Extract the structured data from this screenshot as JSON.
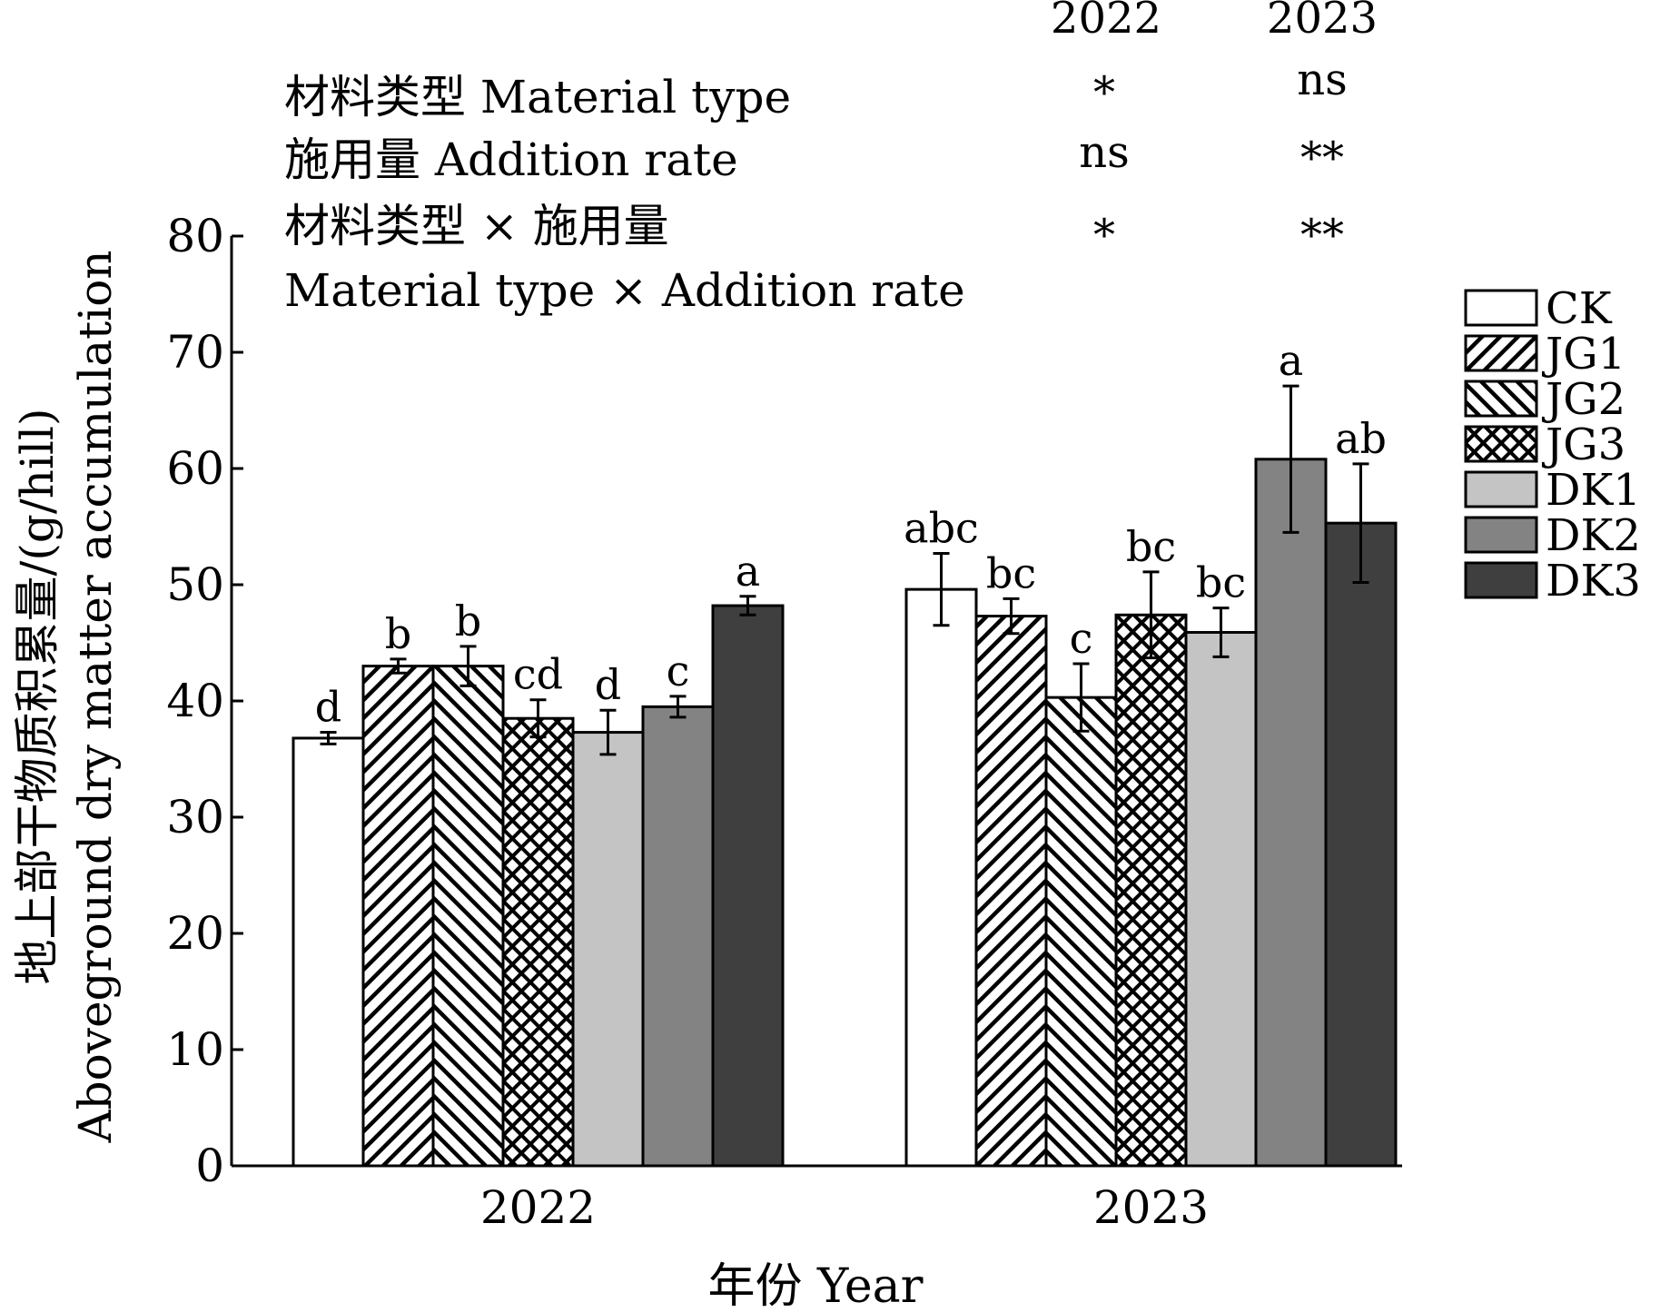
{
  "chart_data": {
    "type": "bar",
    "title": "",
    "xlabel": "年份 Year",
    "ylabel_cn": "地上部干物质积累量/(g/hill)",
    "ylabel_en": "Aboveground dry matter accumulation",
    "ylim": [
      0,
      80
    ],
    "yticks": [
      "0",
      "10",
      "20",
      "30",
      "40",
      "50",
      "60",
      "70",
      "80"
    ],
    "categories": [
      "2022",
      "2023"
    ],
    "series": [
      {
        "name": "CK",
        "values": [
          36.8,
          49.6
        ],
        "errors": [
          0.5,
          3.1
        ],
        "letters": [
          "d",
          "abc"
        ],
        "fill": "#ffffff",
        "pattern": "none"
      },
      {
        "name": "JG1",
        "values": [
          43.0,
          47.3
        ],
        "errors": [
          0.6,
          1.5
        ],
        "letters": [
          "b",
          "bc"
        ],
        "fill": "#ffffff",
        "pattern": "forward-diagonal"
      },
      {
        "name": "JG2",
        "values": [
          43.0,
          40.3
        ],
        "errors": [
          1.7,
          2.9
        ],
        "letters": [
          "b",
          "c"
        ],
        "fill": "#ffffff",
        "pattern": "backward-diagonal"
      },
      {
        "name": "JG3",
        "values": [
          38.5,
          47.4
        ],
        "errors": [
          1.6,
          3.7
        ],
        "letters": [
          "cd",
          "bc"
        ],
        "fill": "#ffffff",
        "pattern": "crosshatch"
      },
      {
        "name": "DK1",
        "values": [
          37.3,
          45.9
        ],
        "errors": [
          1.9,
          2.1
        ],
        "letters": [
          "d",
          "bc"
        ],
        "fill": "#c4c4c4",
        "pattern": "none"
      },
      {
        "name": "DK2",
        "values": [
          39.5,
          60.8
        ],
        "errors": [
          0.9,
          6.3
        ],
        "letters": [
          "c",
          "a"
        ],
        "fill": "#838383",
        "pattern": "none"
      },
      {
        "name": "DK3",
        "values": [
          48.2,
          55.3
        ],
        "errors": [
          0.8,
          5.1
        ],
        "letters": [
          "a",
          "ab"
        ],
        "fill": "#3f3f3f",
        "pattern": "none"
      }
    ],
    "anova": {
      "years": [
        "2022",
        "2023"
      ],
      "rows": [
        {
          "label": "材料类型 Material type",
          "values": [
            "*",
            "ns"
          ]
        },
        {
          "label": "施用量 Addition rate",
          "values": [
            "ns",
            "**"
          ]
        },
        {
          "label": "材料类型 × 施用量",
          "values": [
            "*",
            "**"
          ]
        }
      ],
      "last_label": "Material type × Addition rate"
    }
  }
}
